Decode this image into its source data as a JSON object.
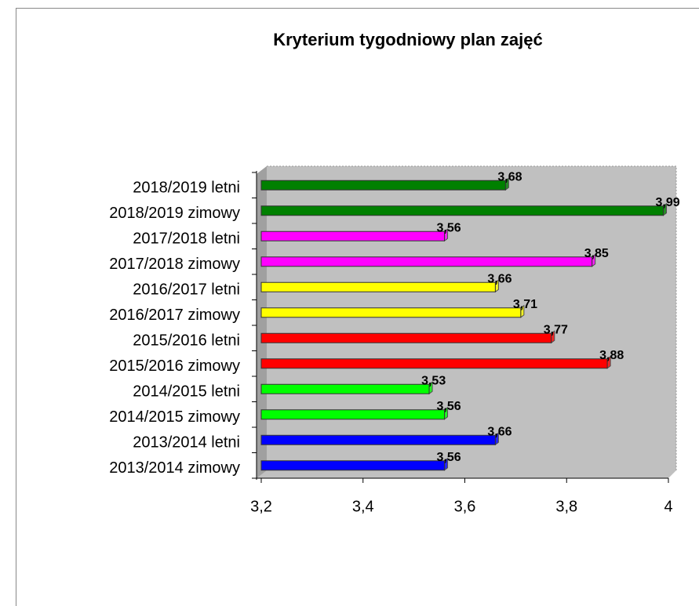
{
  "chart_data": {
    "type": "hbar",
    "title": "Kryterium tygodniowy plan zajęć",
    "categories": [
      "2018/2019 letni",
      "2018/2019 zimowy",
      "2017/2018 letni",
      "2017/2018 zimowy",
      "2016/2017 letni",
      "2016/2017 zimowy",
      "2015/2016 letni",
      "2015/2016 zimowy",
      "2014/2015 letni",
      "2014/2015 zimowy",
      "2013/2014 letni",
      "2013/2014 zimowy"
    ],
    "values": [
      3.68,
      3.99,
      3.56,
      3.85,
      3.66,
      3.71,
      3.77,
      3.88,
      3.53,
      3.56,
      3.66,
      3.56
    ],
    "value_labels": [
      "3,68",
      "3,99",
      "3,56",
      "3,85",
      "3,66",
      "3,71",
      "3,77",
      "3,88",
      "3,53",
      "3,56",
      "3,66",
      "3,56"
    ],
    "colors": [
      "#008000",
      "#008000",
      "#ff00ff",
      "#ff00ff",
      "#ffff00",
      "#ffff00",
      "#ff0000",
      "#ff0000",
      "#00ff00",
      "#00ff00",
      "#0000ff",
      "#0000ff"
    ],
    "xlim": [
      3.2,
      4
    ],
    "xticks": [
      {
        "value": 3.2,
        "label": "3,2"
      },
      {
        "value": 3.4,
        "label": "3,4"
      },
      {
        "value": 3.6,
        "label": "3,6"
      },
      {
        "value": 3.8,
        "label": "3,8"
      },
      4
    ],
    "grid": false
  }
}
